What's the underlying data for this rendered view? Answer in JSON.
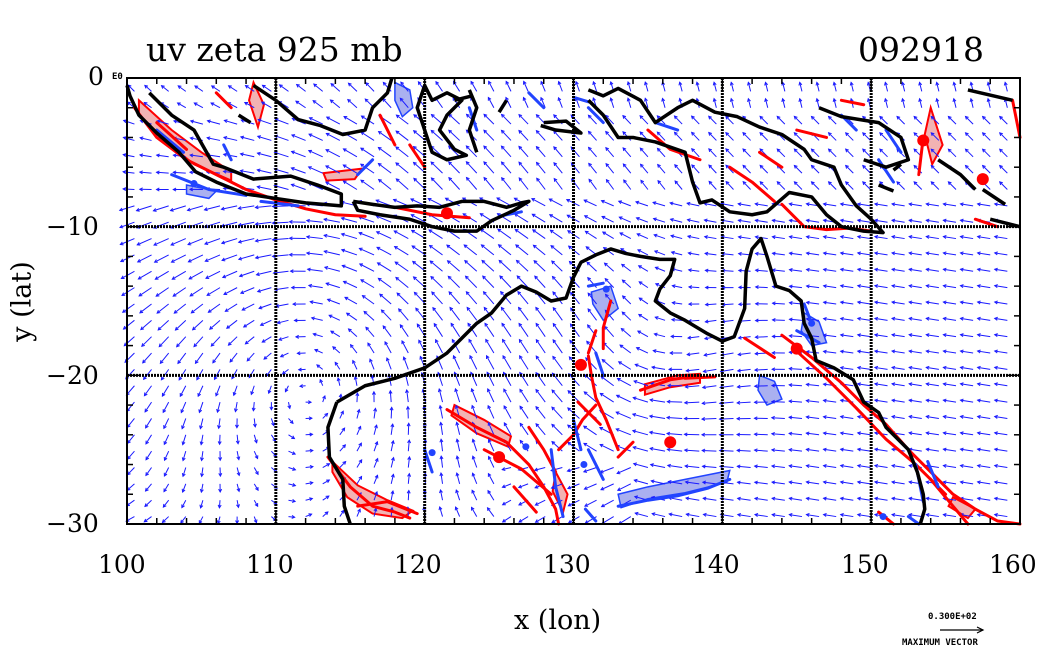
{
  "chart_data": {
    "type": "vector-field-contour-map",
    "title_left": "uv zeta 925 mb",
    "title_right": "092918",
    "xlabel": "x (lon)",
    "ylabel": "y (lat)",
    "xlim": [
      100,
      160
    ],
    "ylim": [
      -30,
      0
    ],
    "x_ticks": [
      100,
      110,
      120,
      130,
      140,
      150,
      160
    ],
    "y_ticks": [
      0,
      -10,
      -20,
      -30
    ],
    "y_tick_labels": [
      "0",
      "−10",
      "−20",
      "−30"
    ],
    "y_top_suffix": "E0",
    "grid": true,
    "legend_value": "0.300E+02",
    "legend_label": "MAXIMUM VECTOR",
    "colors": {
      "vectors": "#1a1aff",
      "positive_contour": "#ff0000",
      "positive_fill": "#f2b3b3",
      "negative_contour": "#2244ff",
      "negative_fill": "#aab0f0",
      "coastline": "#000000"
    }
  }
}
